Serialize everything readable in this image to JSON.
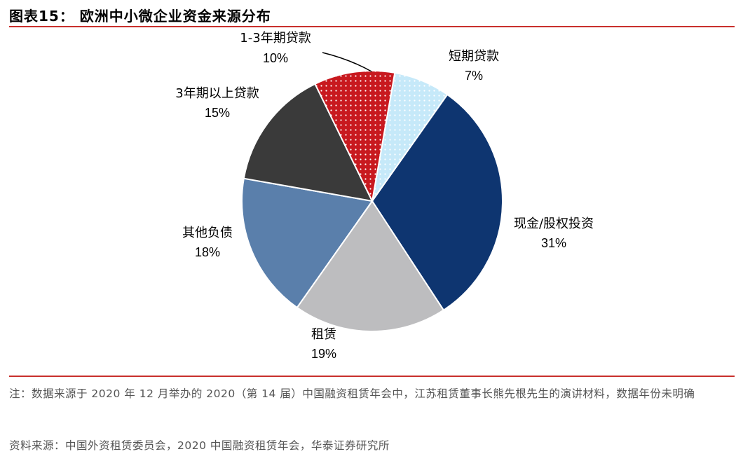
{
  "figure": {
    "title": "图表15： 欧洲中小微企业资金来源分布",
    "note": "注：数据来源于 2020 年 12 月举办的 2020（第 14 届）中国融资租赁年会中，江苏租赁董事长熊先根先生的演讲材料，数据年份未明确",
    "source": "资料来源：中国外资租赁委员会，2020 中国融资租赁年会，华泰证券研究所"
  },
  "chart_data": {
    "type": "pie",
    "title": "欧洲中小微企业资金来源分布",
    "slices": [
      {
        "label": "短期贷款",
        "value": 7,
        "value_text": "7%",
        "color": "#c6e9f9",
        "pattern": "dots-white"
      },
      {
        "label": "现金/股权投资",
        "value": 31,
        "value_text": "31%",
        "color": "#0e3570",
        "pattern": "none"
      },
      {
        "label": "租赁",
        "value": 19,
        "value_text": "19%",
        "color": "#bdbdbf",
        "pattern": "none"
      },
      {
        "label": "其他负债",
        "value": 18,
        "value_text": "18%",
        "color": "#5a7fab",
        "pattern": "none"
      },
      {
        "label": "3年期以上贷款",
        "value": 15,
        "value_text": "15%",
        "color": "#3a3a3a",
        "pattern": "none"
      },
      {
        "label": "1-3年期贷款",
        "value": 10,
        "value_text": "10%",
        "color": "#c8191f",
        "pattern": "dots-white"
      }
    ],
    "start_angle_deg": 10,
    "direction": "clockwise",
    "legend": "none",
    "labels": "outside"
  }
}
